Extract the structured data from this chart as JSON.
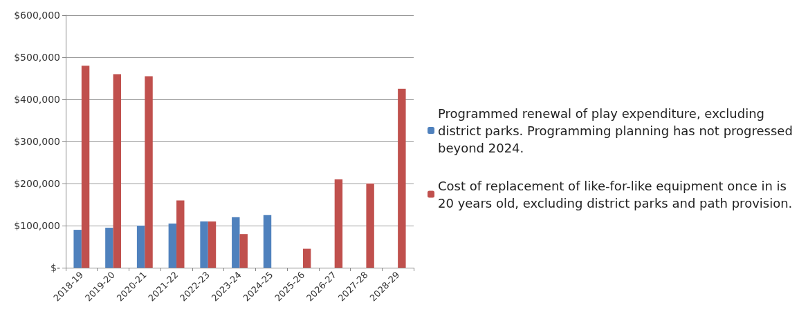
{
  "chart_data": {
    "type": "bar",
    "categories": [
      "2018-19",
      "2019-20",
      "2020-21",
      "2021-22",
      "2022-23",
      "2023-24",
      "2024-25",
      "2025-26",
      "2026-27",
      "2027-28",
      "2028-29"
    ],
    "series": [
      {
        "name": "Programmed renewal of play expenditure, excluding district parks. Programming planning has not progressed beyond 2024.",
        "color": "#4f81bd",
        "values": [
          90000,
          95000,
          100000,
          105000,
          110000,
          120000,
          125000,
          null,
          null,
          null,
          null
        ]
      },
      {
        "name": "Cost of replacement of like-for-like equipment once in is 20 years old, excluding district parks and path provision.",
        "color": "#c0504d",
        "values": [
          480000,
          460000,
          455000,
          160000,
          110000,
          80000,
          null,
          45000,
          210000,
          200000,
          425000
        ]
      }
    ],
    "ylim": [
      0,
      600000
    ],
    "yticks": [
      {
        "value": 0,
        "label": "$-"
      },
      {
        "value": 100000,
        "label": "$100,000"
      },
      {
        "value": 200000,
        "label": "$200,000"
      },
      {
        "value": 300000,
        "label": "$300,000"
      },
      {
        "value": 400000,
        "label": "$400,000"
      },
      {
        "value": 500000,
        "label": "$500,000"
      },
      {
        "value": 600000,
        "label": "$600,000"
      }
    ],
    "grid": "y",
    "legend": "right"
  }
}
